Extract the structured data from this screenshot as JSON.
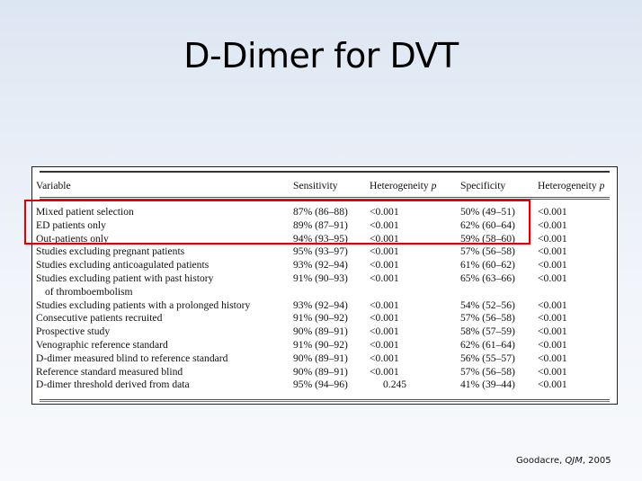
{
  "slide": {
    "title": "D-Dimer for DVT",
    "citation": {
      "author": "Goodacre, ",
      "journal": "QJM",
      "year": ", 2005"
    }
  },
  "table": {
    "headers": {
      "variable": "Variable",
      "sensitivity": "Sensitivity",
      "het_p_1": "Heterogeneity ",
      "het_p_1_sym": "p",
      "specificity": "Specificity",
      "het_p_2": "Heterogeneity ",
      "het_p_2_sym": "p"
    },
    "rows": [
      {
        "variable": "Mixed patient selection",
        "variable_cont": "",
        "sensitivity": "87% (86–88)",
        "het_sens": "<0.001",
        "specificity": "50% (49–51)",
        "het_spec": "<0.001"
      },
      {
        "variable": "ED patients only",
        "variable_cont": "",
        "sensitivity": "89% (87–91)",
        "het_sens": "<0.001",
        "specificity": "62% (60–64)",
        "het_spec": "<0.001"
      },
      {
        "variable": "Out-patients only",
        "variable_cont": "",
        "sensitivity": "94% (93–95)",
        "het_sens": "<0.001",
        "specificity": "59% (58–60)",
        "het_spec": "<0.001"
      },
      {
        "variable": "Studies excluding pregnant patients",
        "variable_cont": "",
        "sensitivity": "95% (93–97)",
        "het_sens": "<0.001",
        "specificity": "57% (56–58)",
        "het_spec": "<0.001"
      },
      {
        "variable": "Studies excluding anticoagulated patients",
        "variable_cont": "",
        "sensitivity": "93% (92–94)",
        "het_sens": "<0.001",
        "specificity": "61% (60–62)",
        "het_spec": "<0.001"
      },
      {
        "variable": "Studies excluding patient with past history",
        "variable_cont": "of thromboembolism",
        "sensitivity": "91% (90–93)",
        "het_sens": "<0.001",
        "specificity": "65% (63–66)",
        "het_spec": "<0.001"
      },
      {
        "variable": "Studies excluding patients with a prolonged history",
        "variable_cont": "",
        "sensitivity": "93% (92–94)",
        "het_sens": "<0.001",
        "specificity": "54% (52–56)",
        "het_spec": "<0.001"
      },
      {
        "variable": "Consecutive patients recruited",
        "variable_cont": "",
        "sensitivity": "91% (90–92)",
        "het_sens": "<0.001",
        "specificity": "57% (56–58)",
        "het_spec": "<0.001"
      },
      {
        "variable": "Prospective study",
        "variable_cont": "",
        "sensitivity": "90% (89–91)",
        "het_sens": "<0.001",
        "specificity": "58% (57–59)",
        "het_spec": "<0.001"
      },
      {
        "variable": "Venographic reference standard",
        "variable_cont": "",
        "sensitivity": "91% (90–92)",
        "het_sens": "<0.001",
        "specificity": "62% (61–64)",
        "het_spec": "<0.001"
      },
      {
        "variable": "D-dimer measured blind to reference standard",
        "variable_cont": "",
        "sensitivity": "90% (89–91)",
        "het_sens": "<0.001",
        "specificity": "56% (55–57)",
        "het_spec": "<0.001"
      },
      {
        "variable": "Reference standard measured blind",
        "variable_cont": "",
        "sensitivity": "90% (89–91)",
        "het_sens": "<0.001",
        "specificity": "57% (56–58)",
        "het_spec": "<0.001"
      },
      {
        "variable": "D-dimer threshold derived from data",
        "variable_cont": "",
        "sensitivity": "95% (94–96)",
        "het_sens": "0.245",
        "specificity": "41% (39–44)",
        "het_spec": "<0.001"
      }
    ]
  },
  "highlight": {
    "color": "#e00000",
    "rows_highlighted": [
      "Mixed patient selection",
      "ED patients only",
      "Out-patients only"
    ]
  }
}
